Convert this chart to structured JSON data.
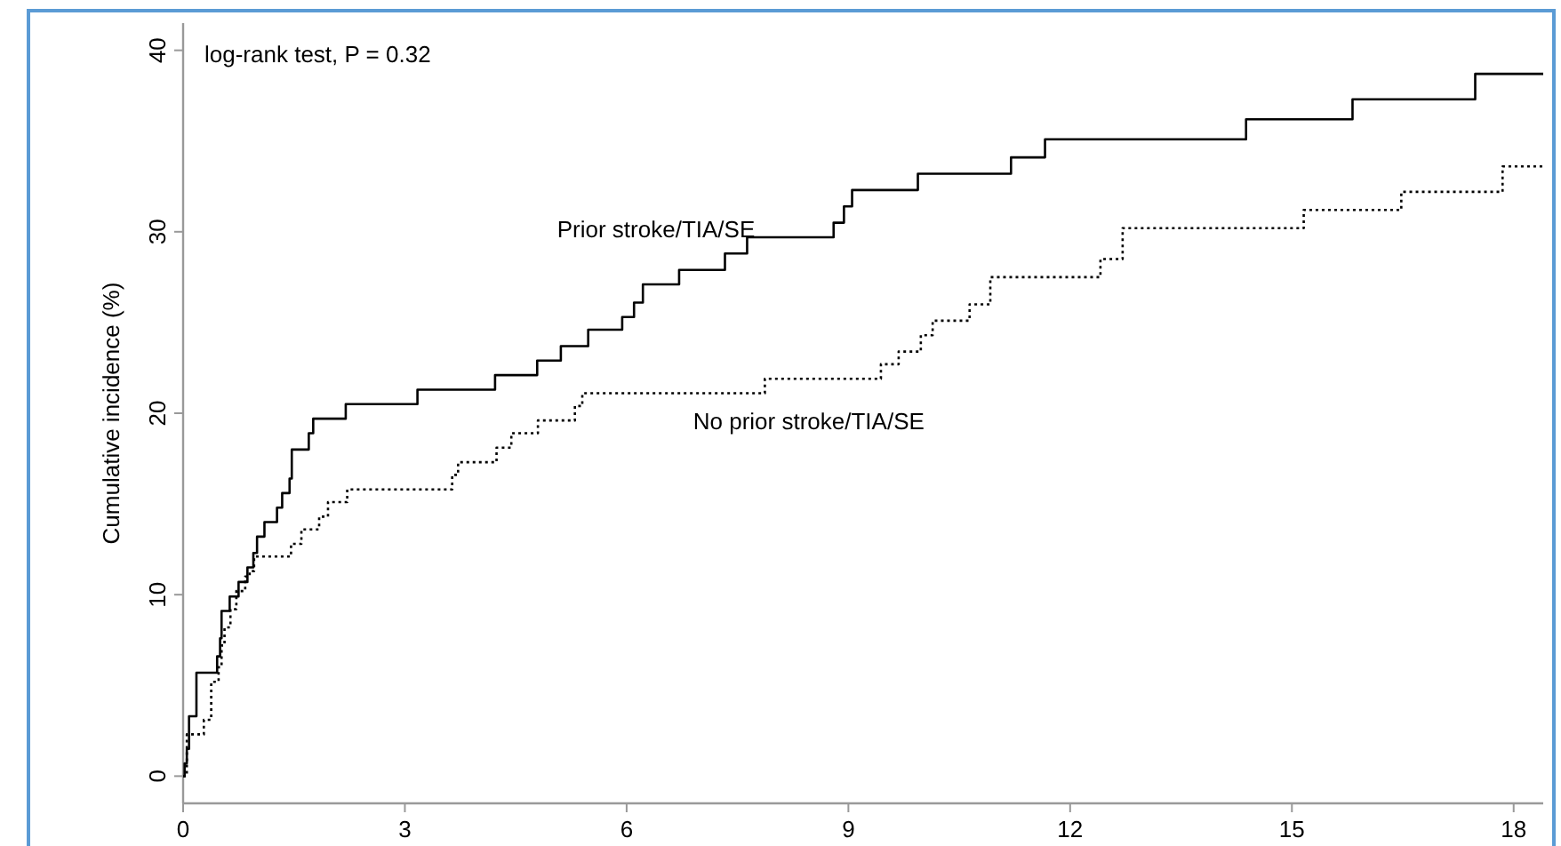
{
  "chart_data": {
    "type": "step",
    "ylabel": "Cumulative incidence (%)",
    "xlim": [
      0,
      18.4
    ],
    "ylim": [
      -1.5,
      41.5
    ],
    "xticks": [
      0,
      3,
      6,
      9,
      12,
      15,
      18
    ],
    "yticks": [
      0,
      10,
      20,
      30,
      40
    ],
    "grid": false,
    "annotations": [
      "log-rank test, P = 0.32"
    ],
    "series": [
      {
        "name": "Prior stroke/TIA/SE",
        "color": "#000000",
        "line_style": "solid",
        "x": [
          0,
          0.02,
          0.05,
          0.08,
          0.18,
          0.46,
          0.5,
          0.52,
          0.63,
          0.75,
          0.87,
          0.95,
          1.0,
          1.1,
          1.27,
          1.34,
          1.44,
          1.47,
          1.7,
          1.76,
          2.2,
          3.17,
          4.22,
          4.79,
          5.11,
          5.48,
          5.94,
          6.1,
          6.22,
          6.71,
          7.33,
          7.63,
          8.8,
          8.94,
          9.05,
          9.94,
          11.2,
          11.66,
          14.38,
          15.82,
          17.48,
          18.4
        ],
        "values": [
          0,
          0.7,
          1.5,
          3.3,
          5.7,
          6.6,
          7.6,
          9.1,
          9.9,
          10.7,
          11.5,
          12.3,
          13.2,
          14.0,
          14.8,
          15.6,
          16.4,
          18.0,
          18.9,
          19.7,
          20.5,
          21.3,
          22.1,
          22.9,
          23.7,
          24.6,
          25.3,
          26.1,
          27.1,
          27.9,
          28.8,
          29.7,
          30.5,
          31.4,
          32.3,
          33.2,
          34.1,
          35.1,
          36.2,
          37.3,
          38.7,
          38.7
        ]
      },
      {
        "name": "No prior stroke/TIA/SE",
        "color": "#000000",
        "line_style": "dotted",
        "x": [
          0,
          0.05,
          0.28,
          0.38,
          0.48,
          0.52,
          0.56,
          0.64,
          0.72,
          0.84,
          0.9,
          0.96,
          1.46,
          1.6,
          1.84,
          1.96,
          2.22,
          3.64,
          3.72,
          4.24,
          4.44,
          4.8,
          5.3,
          5.4,
          7.87,
          9.44,
          9.68,
          9.98,
          10.14,
          10.64,
          10.92,
          12.41,
          12.71,
          15.16,
          16.48,
          17.85,
          18.4
        ],
        "values": [
          0,
          2.3,
          3.1,
          5.2,
          6.0,
          7.2,
          8.2,
          9.2,
          10.2,
          11.0,
          11.3,
          12.1,
          12.8,
          13.6,
          14.3,
          15.1,
          15.8,
          16.6,
          17.3,
          18.1,
          18.9,
          19.6,
          20.4,
          21.1,
          21.9,
          22.7,
          23.4,
          24.3,
          25.1,
          26.0,
          27.5,
          28.5,
          30.2,
          31.2,
          32.2,
          33.6,
          33.6
        ]
      }
    ]
  }
}
